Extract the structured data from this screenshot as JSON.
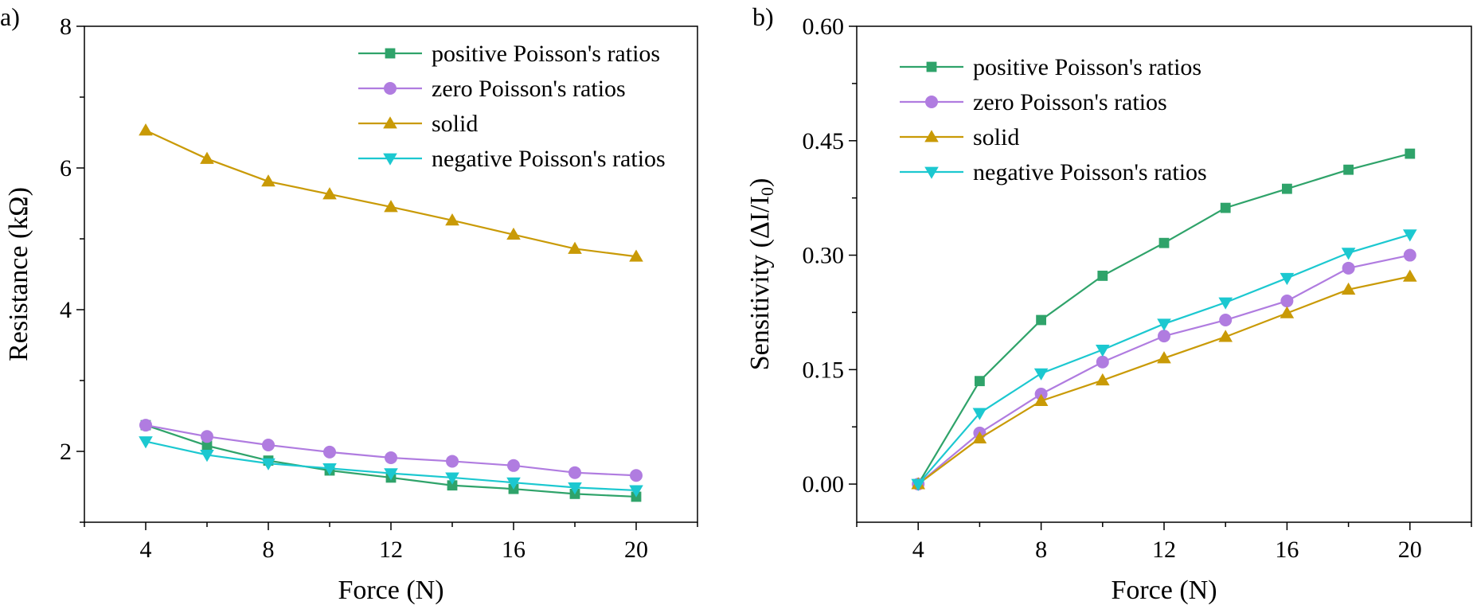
{
  "chart_data": [
    {
      "panel_label": "a)",
      "type": "line",
      "xlabel": "Force (N)",
      "ylabel": "Resistance (kΩ)",
      "xlim": [
        2,
        22
      ],
      "ylim": [
        1,
        8
      ],
      "xticks": [
        4,
        8,
        12,
        16,
        20
      ],
      "yticks": [
        2,
        4,
        6,
        8
      ],
      "grid": false,
      "legend_position": "top-right",
      "x": [
        4,
        6,
        8,
        10,
        12,
        14,
        16,
        18,
        20
      ],
      "series": [
        {
          "name": "positive Poisson's ratios",
          "color": "#2fa36a",
          "marker": "square",
          "values": [
            2.37,
            2.08,
            1.87,
            1.73,
            1.63,
            1.52,
            1.47,
            1.4,
            1.36
          ]
        },
        {
          "name": "zero Poisson's ratios",
          "color": "#b07ce0",
          "marker": "circle",
          "values": [
            2.37,
            2.21,
            2.09,
            1.99,
            1.91,
            1.86,
            1.8,
            1.7,
            1.66
          ]
        },
        {
          "name": "solid",
          "color": "#c99a06",
          "marker": "triangle-up",
          "values": [
            6.53,
            6.13,
            5.81,
            5.63,
            5.45,
            5.26,
            5.06,
            4.86,
            4.75
          ]
        },
        {
          "name": "negative Poisson's ratios",
          "color": "#1cc8d0",
          "marker": "triangle-down",
          "values": [
            2.14,
            1.95,
            1.83,
            1.76,
            1.69,
            1.63,
            1.56,
            1.49,
            1.45
          ]
        }
      ]
    },
    {
      "panel_label": "b)",
      "type": "line",
      "xlabel": "Force (N)",
      "ylabel": "Sensitivity (ΔI/I",
      "ylabel_sub": "0",
      "ylabel_end": ")",
      "xlim": [
        2,
        22
      ],
      "ylim": [
        -0.05,
        0.6
      ],
      "xticks": [
        4,
        8,
        12,
        16,
        20
      ],
      "yticks": [
        "0.00",
        "0.15",
        "0.30",
        "0.45",
        "0.60"
      ],
      "grid": false,
      "legend_position": "top-left",
      "x": [
        4,
        6,
        8,
        10,
        12,
        14,
        16,
        18,
        20
      ],
      "series": [
        {
          "name": "positive Poisson's ratios",
          "color": "#2fa36a",
          "marker": "square",
          "values": [
            0,
            0.135,
            0.215,
            0.273,
            0.316,
            0.362,
            0.387,
            0.412,
            0.433
          ]
        },
        {
          "name": "zero Poisson's ratios",
          "color": "#b07ce0",
          "marker": "circle",
          "values": [
            0,
            0.067,
            0.118,
            0.16,
            0.194,
            0.215,
            0.24,
            0.283,
            0.3
          ]
        },
        {
          "name": "solid",
          "color": "#c99a06",
          "marker": "triangle-up",
          "values": [
            0,
            0.06,
            0.109,
            0.136,
            0.165,
            0.193,
            0.224,
            0.255,
            0.272
          ]
        },
        {
          "name": "negative Poisson's ratios",
          "color": "#1cc8d0",
          "marker": "triangle-down",
          "values": [
            0,
            0.093,
            0.145,
            0.176,
            0.21,
            0.238,
            0.27,
            0.303,
            0.327
          ]
        }
      ]
    }
  ]
}
